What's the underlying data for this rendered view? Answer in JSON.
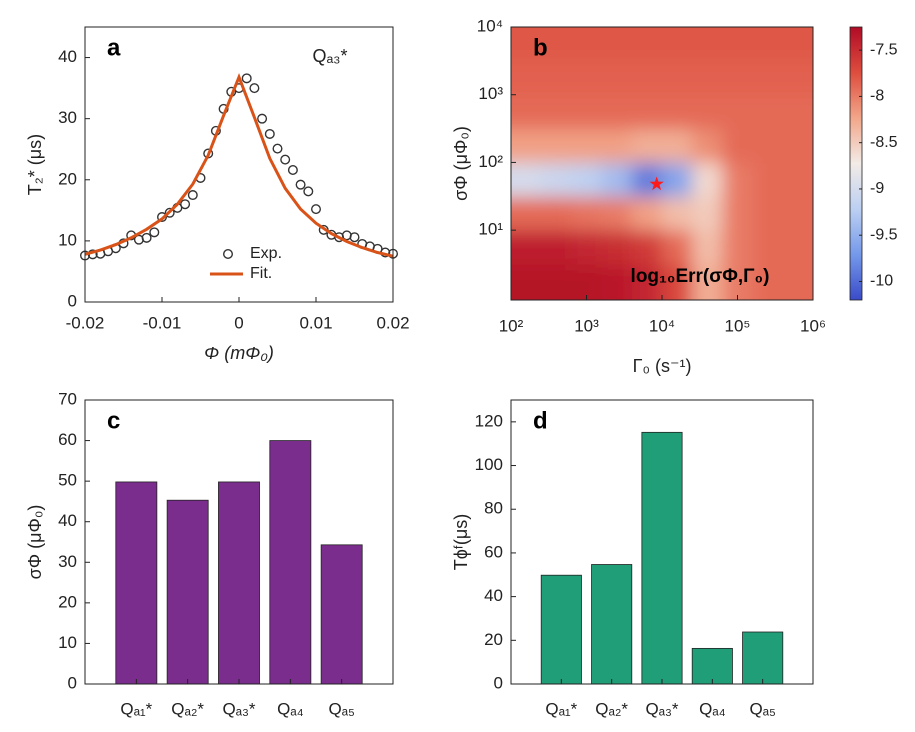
{
  "chart_data": [
    {
      "type": "scatter",
      "label": "a",
      "annotation": "Qₐ₃*",
      "xlabel": "Φ (mΦ₀)",
      "ylabel": "T₂* (μs)",
      "xlim": [
        -0.02,
        0.02
      ],
      "xticks": [
        -0.02,
        -0.01,
        0,
        0.01,
        0.02
      ],
      "ylim": [
        0,
        45
      ],
      "yticks": [
        0,
        10,
        20,
        30,
        40
      ],
      "legend": "lower center",
      "series": [
        {
          "name": "Exp.",
          "style": "markers",
          "color": "#333333",
          "x": [
            -0.02,
            -0.019,
            -0.018,
            -0.017,
            -0.016,
            -0.015,
            -0.014,
            -0.013,
            -0.012,
            -0.011,
            -0.01,
            -0.009,
            -0.008,
            -0.007,
            -0.006,
            -0.005,
            -0.004,
            -0.003,
            -0.002,
            -0.001,
            0,
            0.001,
            0.002,
            0.003,
            0.004,
            0.005,
            0.006,
            0.007,
            0.008,
            0.009,
            0.01,
            0.011,
            0.012,
            0.013,
            0.014,
            0.015,
            0.016,
            0.017,
            0.018,
            0.019,
            0.02
          ],
          "values": [
            7.6,
            7.8,
            7.9,
            8.3,
            8.8,
            9.6,
            10.9,
            10.2,
            10.5,
            11.4,
            13.9,
            14.6,
            15.4,
            16.0,
            17.5,
            20.3,
            24.3,
            28.0,
            31.6,
            34.4,
            35.0,
            36.6,
            35.0,
            30.0,
            27.5,
            25.1,
            23.3,
            21.6,
            19.2,
            18.1,
            15.2,
            11.8,
            11.0,
            10.6,
            10.9,
            10.6,
            9.5,
            9.1,
            8.7,
            8.1,
            7.9
          ]
        },
        {
          "name": "Fit.",
          "style": "line",
          "color": "#d95319",
          "x": [
            -0.02,
            -0.018,
            -0.016,
            -0.014,
            -0.012,
            -0.01,
            -0.008,
            -0.006,
            -0.004,
            -0.002,
            0,
            0.002,
            0.004,
            0.006,
            0.008,
            0.01,
            0.012,
            0.014,
            0.016,
            0.018,
            0.02
          ],
          "values": [
            7.8,
            8.5,
            9.4,
            10.5,
            11.9,
            13.6,
            16.0,
            19.3,
            24.0,
            30.5,
            36.8,
            30.2,
            23.5,
            18.6,
            15.2,
            12.9,
            11.2,
            9.9,
            8.9,
            8.1,
            7.5
          ]
        }
      ]
    },
    {
      "type": "heatmap",
      "label": "b",
      "annotation": "log₁₀Err(σΦ,Γ₀)",
      "xlabel": "Γ₀ (s⁻¹)",
      "ylabel": "σΦ (μΦ₀)",
      "xscale": "log",
      "yscale": "log",
      "xlim": [
        100,
        1000000
      ],
      "ylim": [
        0.93,
        10000
      ],
      "xticks": [
        {
          "value": 100,
          "label": "10²"
        },
        {
          "value": 1000,
          "label": "10³"
        },
        {
          "value": 10000,
          "label": "10⁴"
        },
        {
          "value": 100000,
          "label": "10⁵"
        },
        {
          "value": 1000000,
          "label": "10⁶"
        }
      ],
      "yticks": [
        {
          "value": 10,
          "label": "10¹"
        },
        {
          "value": 100,
          "label": "10²"
        },
        {
          "value": 1000,
          "label": "10³"
        },
        {
          "value": 10000,
          "label": "10⁴"
        }
      ],
      "x": [
        158,
        398,
        1000,
        2512,
        6310,
        15849,
        39811,
        100000,
        251189,
        630957
      ],
      "y": [
        1.78,
        5.62,
        17.8,
        56.2,
        178,
        562,
        1778,
        5623
      ],
      "z": [
        [
          -7.3,
          -7.3,
          -7.3,
          -7.35,
          -7.45,
          -7.7,
          -8.3,
          -8.0,
          -7.9,
          -7.9
        ],
        [
          -7.4,
          -7.4,
          -7.45,
          -7.5,
          -7.6,
          -7.9,
          -8.4,
          -8.0,
          -7.9,
          -7.9
        ],
        [
          -7.9,
          -7.9,
          -7.95,
          -8.0,
          -8.2,
          -8.4,
          -8.5,
          -8.0,
          -7.9,
          -7.9
        ],
        [
          -9.0,
          -9.1,
          -9.2,
          -9.4,
          -9.9,
          -9.6,
          -8.6,
          -8.0,
          -7.9,
          -7.9
        ],
        [
          -8.2,
          -8.2,
          -8.2,
          -8.2,
          -8.3,
          -8.3,
          -8.1,
          -7.9,
          -7.9,
          -7.9
        ],
        [
          -7.9,
          -7.9,
          -7.9,
          -7.9,
          -7.9,
          -7.9,
          -7.9,
          -7.9,
          -7.9,
          -7.9
        ],
        [
          -7.85,
          -7.85,
          -7.85,
          -7.85,
          -7.85,
          -7.85,
          -7.85,
          -7.85,
          -7.85,
          -7.85
        ],
        [
          -7.8,
          -7.8,
          -7.8,
          -7.8,
          -7.8,
          -7.8,
          -7.8,
          -7.8,
          -7.8,
          -7.8
        ]
      ],
      "clim": [
        -10.2,
        -7.25
      ],
      "colorbar_ticks": [
        -10,
        -9.5,
        -9,
        -8.5,
        -8,
        -7.5
      ],
      "colormap": [
        "#3a4bc8",
        "#7599ea",
        "#bcd0f2",
        "#f2ebe6",
        "#f2a68a",
        "#dd4d3e",
        "#b10b26"
      ],
      "marker": {
        "x": 8500,
        "y": 48,
        "color": "#ff1a1a"
      }
    },
    {
      "type": "bar",
      "label": "c",
      "ylabel": "σΦ (μΦ₀)",
      "categories": [
        "Qₐ₁*",
        "Qₐ₂*",
        "Qₐ₃*",
        "Qₐ₄",
        "Qₐ₅"
      ],
      "values": [
        49.8,
        45.3,
        49.8,
        60,
        34.3
      ],
      "color": "#7b2d8e",
      "ylim": [
        0,
        70
      ],
      "yticks": [
        0,
        10,
        20,
        30,
        40,
        50,
        60,
        70
      ]
    },
    {
      "type": "bar",
      "label": "d",
      "ylabel": "Tϕᶠ(μs)",
      "categories": [
        "Qₐ₁*",
        "Qₐ₂*",
        "Qₐ₃*",
        "Qₐ₄",
        "Qₐ₅"
      ],
      "values": [
        49.8,
        54.7,
        115.2,
        16.3,
        23.8
      ],
      "color": "#1f9e78",
      "ylim": [
        0,
        130
      ],
      "yticks": [
        0,
        20,
        40,
        60,
        80,
        100,
        120
      ]
    }
  ]
}
